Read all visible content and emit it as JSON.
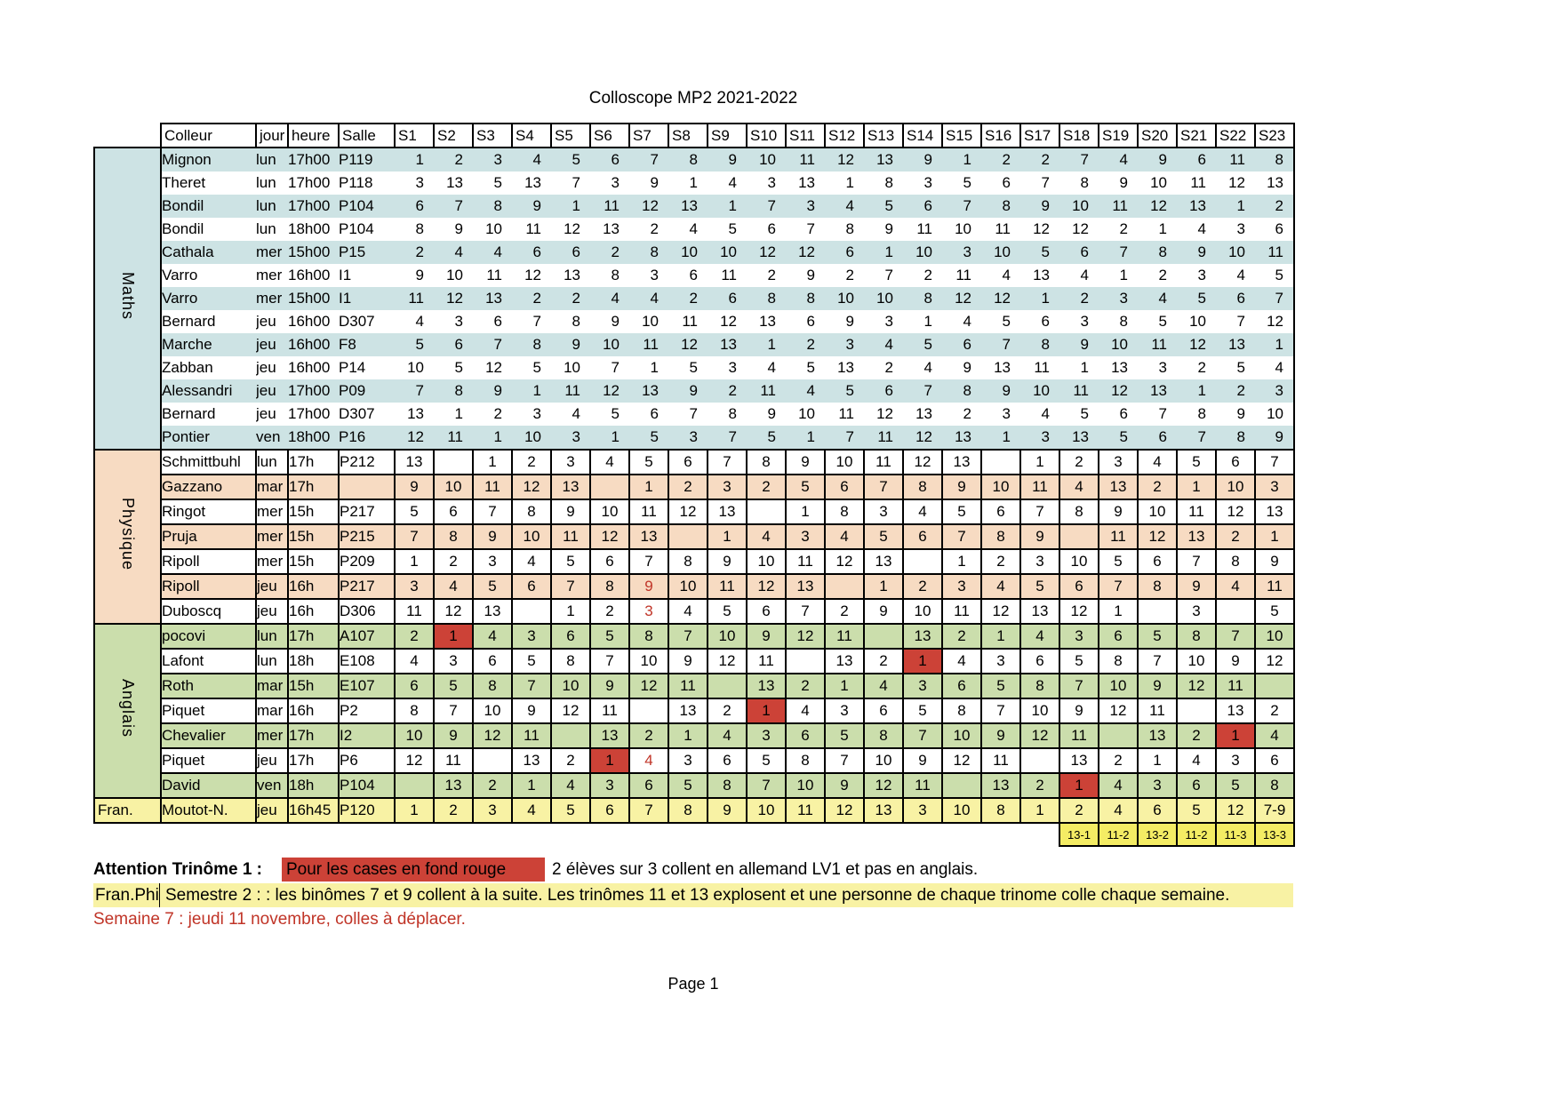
{
  "title": "Colloscope MP2 2021-2022",
  "colors": {
    "maths_blue": "#cde3e4",
    "physique_peach": "#f7dbc2",
    "anglais_green": "#cbdeac",
    "fran_yellow": "#f8f2a4",
    "mini_yellow": "#f4ec64",
    "red_bg": "#cc4237",
    "red_fg": "#c03427"
  },
  "table": {
    "headers": {
      "colleur": "Colleur",
      "jour": "jour",
      "heure": "heure",
      "salle": "Salle"
    },
    "sessions": [
      "S1",
      "S2",
      "S3",
      "S4",
      "S5",
      "S6",
      "S7",
      "S8",
      "S9",
      "S10",
      "S11",
      "S12",
      "S13",
      "S14",
      "S15",
      "S16",
      "S17",
      "S18",
      "S19",
      "S20",
      "S21",
      "S22",
      "S23"
    ],
    "groups": [
      {
        "name": "Maths",
        "orientation": "vertical",
        "band_color": "#cde3e4",
        "stripe_color": "#cde3e4",
        "stripe_offset": 0,
        "bordered": false,
        "value_align": "right",
        "rows": [
          {
            "colleur": "Mignon",
            "jour": "lun",
            "heure": "17h00",
            "salle": "P119",
            "values": [
              1,
              2,
              3,
              4,
              5,
              6,
              7,
              8,
              9,
              10,
              11,
              12,
              13,
              9,
              1,
              2,
              2,
              7,
              4,
              9,
              6,
              11,
              8
            ]
          },
          {
            "colleur": "Theret",
            "jour": "lun",
            "heure": "17h00",
            "salle": "P118",
            "values": [
              3,
              13,
              5,
              13,
              7,
              3,
              9,
              1,
              4,
              3,
              13,
              1,
              8,
              3,
              5,
              6,
              7,
              8,
              9,
              10,
              11,
              12,
              13
            ]
          },
          {
            "colleur": "Bondil",
            "jour": "lun",
            "heure": "17h00",
            "salle": "P104",
            "values": [
              6,
              7,
              8,
              9,
              1,
              11,
              12,
              13,
              1,
              7,
              3,
              4,
              5,
              6,
              7,
              8,
              9,
              10,
              11,
              12,
              13,
              1,
              2
            ]
          },
          {
            "colleur": "Bondil",
            "jour": "lun",
            "heure": "18h00",
            "salle": "P104",
            "values": [
              8,
              9,
              10,
              11,
              12,
              13,
              2,
              4,
              5,
              6,
              7,
              8,
              9,
              11,
              10,
              11,
              12,
              12,
              2,
              1,
              4,
              3,
              6
            ]
          },
          {
            "colleur": "Cathala",
            "jour": "mer",
            "heure": "15h00",
            "salle": "P15",
            "values": [
              2,
              4,
              4,
              6,
              6,
              2,
              8,
              10,
              10,
              12,
              12,
              6,
              1,
              10,
              3,
              10,
              5,
              6,
              7,
              8,
              9,
              10,
              11
            ]
          },
          {
            "colleur": "Varro",
            "jour": "mer",
            "heure": "16h00",
            "salle": "I1",
            "values": [
              9,
              10,
              11,
              12,
              13,
              8,
              3,
              6,
              11,
              2,
              9,
              2,
              7,
              2,
              11,
              4,
              13,
              4,
              1,
              2,
              3,
              4,
              5
            ]
          },
          {
            "colleur": "Varro",
            "jour": "mer",
            "heure": "15h00",
            "salle": "I1",
            "values": [
              11,
              12,
              13,
              2,
              2,
              4,
              4,
              2,
              6,
              8,
              8,
              10,
              10,
              8,
              12,
              12,
              1,
              2,
              3,
              4,
              5,
              6,
              7
            ]
          },
          {
            "colleur": "Bernard",
            "jour": "jeu",
            "heure": "16h00",
            "salle": "D307",
            "values": [
              4,
              3,
              6,
              7,
              8,
              9,
              10,
              11,
              12,
              13,
              6,
              9,
              3,
              1,
              4,
              5,
              6,
              3,
              8,
              5,
              10,
              7,
              12
            ]
          },
          {
            "colleur": "Marche",
            "jour": "jeu",
            "heure": "16h00",
            "salle": "F8",
            "values": [
              5,
              6,
              7,
              8,
              9,
              10,
              11,
              12,
              13,
              1,
              2,
              3,
              4,
              5,
              6,
              7,
              8,
              9,
              10,
              11,
              12,
              13,
              1
            ]
          },
          {
            "colleur": "Zabban",
            "jour": "jeu",
            "heure": "16h00",
            "salle": "P14",
            "values": [
              10,
              5,
              12,
              5,
              10,
              7,
              1,
              5,
              3,
              4,
              5,
              13,
              2,
              4,
              9,
              13,
              11,
              1,
              13,
              3,
              2,
              5,
              4
            ]
          },
          {
            "colleur": "Alessandri",
            "jour": "jeu",
            "heure": "17h00",
            "salle": "P09",
            "values": [
              7,
              8,
              9,
              1,
              11,
              12,
              13,
              9,
              2,
              11,
              4,
              5,
              6,
              7,
              8,
              9,
              10,
              11,
              12,
              13,
              1,
              2,
              3
            ]
          },
          {
            "colleur": "Bernard",
            "jour": "jeu",
            "heure": "17h00",
            "salle": "D307",
            "values": [
              13,
              1,
              2,
              3,
              4,
              5,
              6,
              7,
              8,
              9,
              10,
              11,
              12,
              13,
              2,
              3,
              4,
              5,
              6,
              7,
              8,
              9,
              10
            ]
          },
          {
            "colleur": "Pontier",
            "jour": "ven",
            "heure": "18h00",
            "salle": "P16",
            "values": [
              12,
              11,
              1,
              10,
              3,
              1,
              5,
              3,
              7,
              5,
              1,
              7,
              11,
              12,
              13,
              1,
              3,
              13,
              5,
              6,
              7,
              8,
              9
            ]
          }
        ]
      },
      {
        "name": "Physique",
        "orientation": "vertical",
        "band_color": "#f7dbc2",
        "stripe_color": "#f7dbc2",
        "stripe_offset": 1,
        "bordered": true,
        "value_align": "center",
        "rows": [
          {
            "colleur": "Schmittbuhl",
            "jour": "lun",
            "heure": "17h",
            "salle": "P212",
            "values": [
              13,
              "",
              1,
              2,
              3,
              4,
              5,
              6,
              7,
              8,
              9,
              10,
              11,
              12,
              13,
              "",
              1,
              2,
              3,
              4,
              5,
              6,
              7
            ]
          },
          {
            "colleur": "Gazzano",
            "jour": "mar",
            "heure": "17h",
            "salle": "",
            "values": [
              9,
              10,
              11,
              12,
              13,
              "",
              1,
              2,
              3,
              2,
              5,
              6,
              7,
              8,
              9,
              10,
              11,
              4,
              13,
              2,
              1,
              10,
              3
            ]
          },
          {
            "colleur": "Ringot",
            "jour": "mer",
            "heure": "15h",
            "salle": "P217",
            "values": [
              5,
              6,
              7,
              8,
              9,
              10,
              11,
              12,
              13,
              "",
              1,
              8,
              3,
              4,
              5,
              6,
              7,
              8,
              9,
              10,
              11,
              12,
              13
            ]
          },
          {
            "colleur": "Pruja",
            "jour": "mer",
            "heure": "15h",
            "salle": "P215",
            "values": [
              7,
              8,
              9,
              10,
              11,
              12,
              13,
              "",
              1,
              4,
              3,
              4,
              5,
              6,
              7,
              8,
              9,
              "",
              11,
              12,
              13,
              2,
              1
            ]
          },
          {
            "colleur": "Ripoll",
            "jour": "mer",
            "heure": "15h",
            "salle": "P209",
            "values": [
              1,
              2,
              3,
              4,
              5,
              6,
              7,
              8,
              9,
              10,
              11,
              12,
              13,
              "",
              1,
              2,
              3,
              10,
              5,
              6,
              7,
              8,
              9
            ]
          },
          {
            "colleur": "Ripoll",
            "jour": "jeu",
            "heure": "16h",
            "salle": "P217",
            "values": [
              3,
              4,
              5,
              6,
              7,
              8,
              {
                "v": 9,
                "fg": "red"
              },
              10,
              11,
              12,
              13,
              "",
              1,
              2,
              3,
              4,
              5,
              6,
              7,
              8,
              9,
              4,
              11
            ]
          },
          {
            "colleur": "Duboscq",
            "jour": "jeu",
            "heure": "16h",
            "salle": "D306",
            "values": [
              11,
              12,
              13,
              "",
              1,
              2,
              {
                "v": 3,
                "fg": "red"
              },
              4,
              5,
              6,
              7,
              2,
              9,
              10,
              11,
              12,
              13,
              12,
              1,
              "",
              3,
              "",
              5
            ]
          }
        ]
      },
      {
        "name": "Anglais",
        "orientation": "vertical",
        "band_color": "#cbdeac",
        "stripe_color": "#cbdeac",
        "stripe_offset": 0,
        "bordered": true,
        "value_align": "center",
        "rows": [
          {
            "colleur": "pocovi",
            "jour": "lun",
            "heure": "17h",
            "salle": "A107",
            "values": [
              2,
              {
                "v": 1,
                "bg": "red"
              },
              4,
              3,
              6,
              5,
              8,
              7,
              10,
              9,
              12,
              11,
              "",
              13,
              2,
              1,
              4,
              3,
              6,
              5,
              8,
              7,
              10
            ]
          },
          {
            "colleur": "Lafont",
            "jour": "lun",
            "heure": "18h",
            "salle": "E108",
            "values": [
              4,
              3,
              6,
              5,
              8,
              7,
              10,
              9,
              12,
              11,
              "",
              13,
              2,
              {
                "v": 1,
                "bg": "red"
              },
              4,
              3,
              6,
              5,
              8,
              7,
              10,
              9,
              12
            ]
          },
          {
            "colleur": "Roth",
            "jour": "mar",
            "heure": "15h",
            "salle": "E107",
            "values": [
              6,
              5,
              8,
              7,
              10,
              9,
              12,
              11,
              "",
              13,
              2,
              1,
              4,
              3,
              6,
              5,
              8,
              7,
              10,
              9,
              12,
              11,
              ""
            ]
          },
          {
            "colleur": "Piquet",
            "jour": "mar",
            "heure": "16h",
            "salle": "P2",
            "values": [
              8,
              7,
              10,
              9,
              12,
              11,
              "",
              13,
              2,
              {
                "v": 1,
                "bg": "red"
              },
              4,
              3,
              6,
              5,
              8,
              7,
              10,
              9,
              12,
              11,
              "",
              13,
              2
            ]
          },
          {
            "colleur": "Chevalier",
            "jour": "mer",
            "heure": "17h",
            "salle": "I2",
            "values": [
              10,
              9,
              12,
              11,
              "",
              13,
              2,
              1,
              4,
              3,
              6,
              5,
              8,
              7,
              10,
              9,
              12,
              11,
              "",
              13,
              2,
              {
                "v": 1,
                "bg": "red"
              },
              4
            ]
          },
          {
            "colleur": "Piquet",
            "jour": "jeu",
            "heure": "17h",
            "salle": "P6",
            "values": [
              12,
              11,
              "",
              13,
              2,
              {
                "v": 1,
                "bg": "red"
              },
              {
                "v": 4,
                "fg": "red"
              },
              3,
              6,
              5,
              8,
              7,
              10,
              9,
              12,
              11,
              "",
              13,
              2,
              1,
              4,
              3,
              6
            ]
          },
          {
            "colleur": "David",
            "jour": "ven",
            "heure": "18h",
            "salle": "P104",
            "values": [
              "",
              13,
              2,
              1,
              4,
              3,
              6,
              5,
              8,
              7,
              10,
              9,
              12,
              11,
              "",
              13,
              2,
              {
                "v": 1,
                "bg": "red"
              },
              4,
              3,
              6,
              5,
              8
            ]
          }
        ]
      },
      {
        "name": "Fran.",
        "orientation": "horizontal",
        "band_color": "#f8f2a4",
        "stripe_color": "#f8f2a4",
        "stripe_offset": 0,
        "bordered": true,
        "value_align": "center",
        "rows": [
          {
            "colleur": "Moutot-N.",
            "jour": "jeu",
            "heure": "16h45",
            "salle": "P120",
            "values": [
              1,
              2,
              3,
              4,
              5,
              6,
              7,
              8,
              9,
              10,
              11,
              12,
              13,
              3,
              10,
              8,
              1,
              2,
              4,
              6,
              5,
              12,
              "7-9"
            ]
          }
        ]
      }
    ],
    "footer_cells": [
      "13-1",
      "11-2",
      "13-2",
      "11-2",
      "11-3",
      "13-3"
    ]
  },
  "notes": {
    "attention_label": "Attention Trinôme 1 :",
    "red_box_text": "Pour les cases en fond  rouge",
    "attention_rest": "2 élèves sur 3 collent en allemand LV1 et pas en anglais.",
    "line2_prefix": "Fran.Phi",
    "line2_text": "Semestre 2 :  : les binômes  7 et 9 collent à la suite.  Les trinômes 11 et 13 explosent et une personne de chaque trinome colle chaque semaine.",
    "line3": "Semaine 7 : jeudi 11 novembre, colles à déplacer."
  },
  "page_label": "Page 1"
}
